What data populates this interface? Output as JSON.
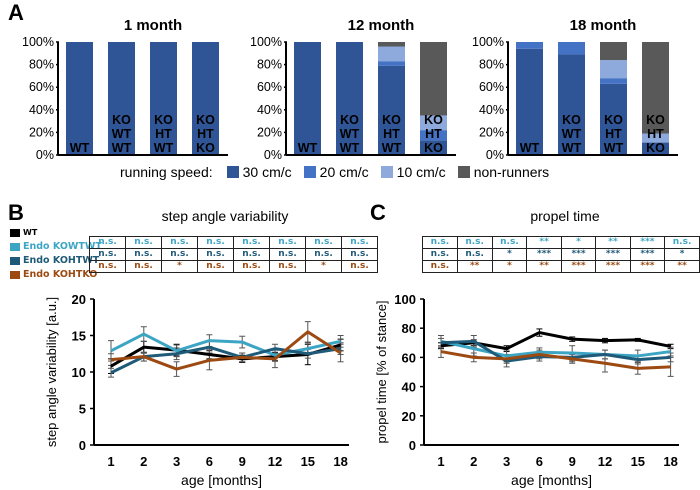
{
  "panels": {
    "a_label": "A",
    "b_label": "B",
    "c_label": "C"
  },
  "colors": {
    "speed30": "#2F5597",
    "speed20": "#4472C4",
    "speed10": "#8EA9DB",
    "nonrunners": "#595959",
    "WT": "#000000",
    "KOWTWT": "#3DA5C4",
    "KOHTWT": "#1F5A78",
    "KOHTKO": "#9C4A12"
  },
  "legend_A": {
    "label": "running speed:",
    "items": [
      {
        "name": "30 cm/c",
        "key": "speed30"
      },
      {
        "name": "20 cm/c",
        "key": "speed20"
      },
      {
        "name": "10 cm/c",
        "key": "speed10"
      },
      {
        "name": "non-runners",
        "key": "nonrunners"
      }
    ]
  },
  "group_key": {
    "items": [
      {
        "name": "WT",
        "key": "WT"
      },
      {
        "name": "Endo KOWTWT",
        "key": "KOWTWT"
      },
      {
        "name": "Endo KOHTWT",
        "key": "KOHTWT"
      },
      {
        "name": "Endo KOHTKO",
        "key": "KOHTKO"
      }
    ]
  },
  "sig_B": {
    "rows": [
      {
        "key": "KOWTWT",
        "cells": [
          "n.s.",
          "n.s.",
          "n.s.",
          "n.s.",
          "n.s.",
          "n.s.",
          "n.s.",
          "n.s."
        ]
      },
      {
        "key": "KOHTWT",
        "cells": [
          "n.s.",
          "n.s.",
          "n.s.",
          "n.s.",
          "n.s.",
          "n.s.",
          "n.s.",
          "n.s."
        ]
      },
      {
        "key": "KOHTKO",
        "cells": [
          "n.s.",
          "n.s.",
          "*",
          "n.s.",
          "n.s.",
          "n.s.",
          "*",
          "n.s."
        ]
      }
    ]
  },
  "sig_C": {
    "rows": [
      {
        "key": "KOWTWT",
        "cells": [
          "n.s.",
          "n.s.",
          "n.s.",
          "**",
          "*",
          "**",
          "***",
          "n.s."
        ]
      },
      {
        "key": "KOHTWT",
        "cells": [
          "n.s.",
          "n.s.",
          "*",
          "***",
          "***",
          "***",
          "***",
          "*"
        ]
      },
      {
        "key": "KOHTKO",
        "cells": [
          "n.s.",
          "**",
          "*",
          "**",
          "***",
          "***",
          "***",
          "**"
        ]
      }
    ]
  },
  "chart_data": [
    {
      "type": "bar",
      "stacked": true,
      "title": "1 month",
      "categories": [
        "WT",
        "KO WT WT",
        "KO HT WT",
        "KO HT KO"
      ],
      "category_lines": [
        [
          "WT"
        ],
        [
          "KO",
          "WT",
          "WT"
        ],
        [
          "KO",
          "HT",
          "WT"
        ],
        [
          "KO",
          "HT",
          "KO"
        ]
      ],
      "series": [
        {
          "name": "30 cm/c",
          "key": "speed30",
          "values": [
            100,
            100,
            100,
            100
          ]
        },
        {
          "name": "20 cm/c",
          "key": "speed20",
          "values": [
            0,
            0,
            0,
            0
          ]
        },
        {
          "name": "10 cm/c",
          "key": "speed10",
          "values": [
            0,
            0,
            0,
            0
          ]
        },
        {
          "name": "non-runners",
          "key": "nonrunners",
          "values": [
            0,
            0,
            0,
            0
          ]
        }
      ],
      "yticks": [
        "0%",
        "20%",
        "40%",
        "60%",
        "80%",
        "100%"
      ],
      "ylim": [
        0,
        100
      ]
    },
    {
      "type": "bar",
      "stacked": true,
      "title": "12 month",
      "categories": [
        "WT",
        "KO WT WT",
        "KO HT WT",
        "KO HT KO"
      ],
      "category_lines": [
        [
          "WT"
        ],
        [
          "KO",
          "WT",
          "WT"
        ],
        [
          "KO",
          "HT",
          "WT"
        ],
        [
          "KO",
          "HT",
          "KO"
        ]
      ],
      "series": [
        {
          "name": "30 cm/c",
          "key": "speed30",
          "values": [
            100,
            100,
            79,
            13
          ]
        },
        {
          "name": "20 cm/c",
          "key": "speed20",
          "values": [
            0,
            0,
            4,
            9
          ]
        },
        {
          "name": "10 cm/c",
          "key": "speed10",
          "values": [
            0,
            0,
            13,
            13
          ]
        },
        {
          "name": "non-runners",
          "key": "nonrunners",
          "values": [
            0,
            0,
            4,
            65
          ]
        }
      ],
      "yticks": [
        "0%",
        "20%",
        "40%",
        "60%",
        "80%",
        "100%"
      ],
      "ylim": [
        0,
        100
      ]
    },
    {
      "type": "bar",
      "stacked": true,
      "title": "18 month",
      "categories": [
        "WT",
        "KO WT WT",
        "KO HT WT",
        "KO HT KO"
      ],
      "category_lines": [
        [
          "WT"
        ],
        [
          "KO",
          "WT",
          "WT"
        ],
        [
          "KO",
          "HT",
          "WT"
        ],
        [
          "KO",
          "HT",
          "KO"
        ]
      ],
      "series": [
        {
          "name": "30 cm/c",
          "key": "speed30",
          "values": [
            94,
            89,
            63,
            11
          ]
        },
        {
          "name": "20 cm/c",
          "key": "speed20",
          "values": [
            6,
            11,
            5,
            0
          ]
        },
        {
          "name": "10 cm/c",
          "key": "speed10",
          "values": [
            0,
            0,
            16,
            8
          ]
        },
        {
          "name": "non-runners",
          "key": "nonrunners",
          "values": [
            0,
            0,
            16,
            81
          ]
        }
      ],
      "yticks": [
        "0%",
        "20%",
        "40%",
        "60%",
        "80%",
        "100%"
      ],
      "ylim": [
        0,
        100
      ]
    },
    {
      "type": "line",
      "title": "step angle variability",
      "xlabel": "age [months]",
      "ylabel": "step angle variability [a.u.]",
      "x": [
        "1",
        "2",
        "3",
        "6",
        "9",
        "12",
        "15",
        "18"
      ],
      "ylim": [
        0,
        20
      ],
      "yticks": [
        0,
        5,
        10,
        15,
        20
      ],
      "series": [
        {
          "name": "WT",
          "key": "WT",
          "values": [
            10.8,
            13.4,
            13.0,
            12.4,
            11.8,
            12.1,
            12.4,
            13.7
          ],
          "err": [
            1.0,
            0.8,
            0.8,
            0.6,
            0.5,
            0.6,
            1.4,
            0.8
          ]
        },
        {
          "name": "Endo KOWTWT",
          "key": "KOWTWT",
          "values": [
            12.9,
            15.2,
            12.9,
            14.3,
            14.1,
            12.3,
            13.2,
            14.2
          ],
          "err": [
            1.4,
            1.0,
            0.8,
            0.8,
            0.8,
            0.7,
            0.8,
            0.8
          ]
        },
        {
          "name": "Endo KOHTWT",
          "key": "KOHTWT",
          "values": [
            9.9,
            12.1,
            12.5,
            13.4,
            12.0,
            13.2,
            12.5,
            13.2
          ],
          "err": [
            0.6,
            0.6,
            0.8,
            0.8,
            0.6,
            0.6,
            0.6,
            0.8
          ]
        },
        {
          "name": "Endo KOHTKO",
          "key": "KOHTKO",
          "values": [
            11.7,
            12.1,
            10.4,
            11.6,
            12.0,
            11.8,
            15.5,
            12.6
          ],
          "err": [
            0.8,
            0.6,
            1.0,
            1.3,
            0.6,
            1.2,
            1.4,
            1.2
          ]
        }
      ]
    },
    {
      "type": "line",
      "title": "propel time",
      "xlabel": "age [months]",
      "ylabel": "propel time [% of stance]",
      "x": [
        "1",
        "2",
        "3",
        "6",
        "9",
        "12",
        "15",
        "18"
      ],
      "ylim": [
        0,
        100
      ],
      "yticks": [
        0,
        20,
        40,
        60,
        80,
        100
      ],
      "series": [
        {
          "name": "WT",
          "key": "WT",
          "values": [
            68,
            70,
            66,
            77,
            72.5,
            71.5,
            72,
            67.5
          ],
          "err": [
            2,
            2,
            2,
            2.5,
            1.5,
            1.5,
            1,
            1.5
          ]
        },
        {
          "name": "Endo KOWTWT",
          "key": "KOWTWT",
          "values": [
            71,
            66,
            61,
            63.5,
            63,
            62,
            61,
            64
          ],
          "err": [
            4,
            5,
            4,
            3,
            5,
            3,
            4,
            3
          ]
        },
        {
          "name": "Endo KOHTWT",
          "key": "KOHTWT",
          "values": [
            70,
            71,
            57.5,
            60.5,
            60,
            62,
            58.5,
            60
          ],
          "err": [
            3,
            4,
            4,
            3,
            3,
            3,
            3,
            3
          ]
        },
        {
          "name": "Endo KOHTKO",
          "key": "KOHTKO",
          "values": [
            64,
            60,
            59,
            62,
            59,
            56,
            52.5,
            53.5
          ],
          "err": [
            4,
            3,
            3,
            3,
            3,
            6,
            4,
            6.5
          ]
        }
      ]
    }
  ]
}
